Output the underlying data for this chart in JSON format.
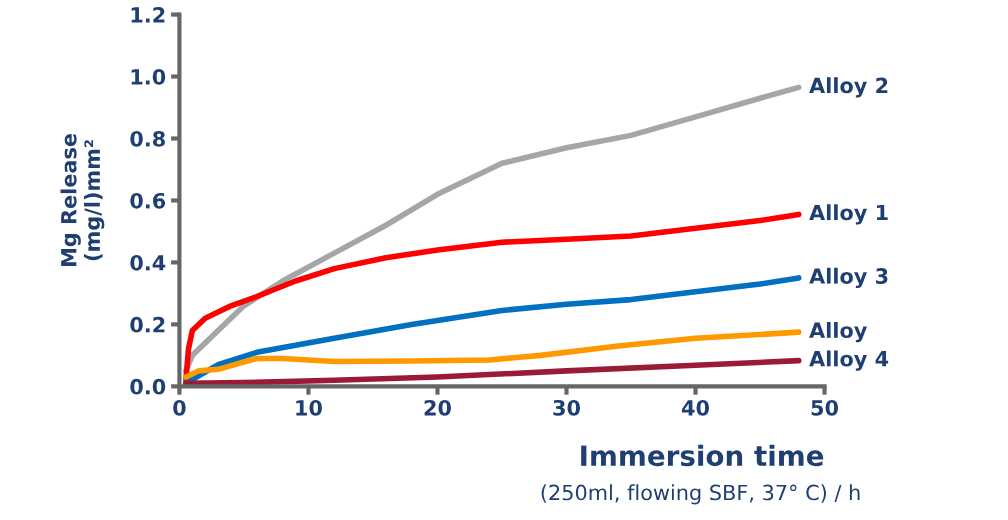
{
  "chart_data": {
    "type": "line",
    "xlabel": "Immersion time",
    "ylabel": "Mg Release\n(mg/l)mm²",
    "annotations": [
      "(250ml, flowing SBF, 37° C) / h"
    ],
    "xlim": [
      0,
      50
    ],
    "xticks": [
      0,
      10,
      20,
      30,
      40,
      50
    ],
    "ylim": [
      0,
      1.2
    ],
    "yticks": [
      {
        "value": 0,
        "label": "0.0"
      },
      {
        "value": 0.2,
        "label": "0.2"
      },
      {
        "value": 0.4,
        "label": "0.4"
      },
      {
        "value": 0.6,
        "label": "0.6"
      },
      {
        "value": 0.8,
        "label": "0.8"
      },
      {
        "value": 1.0,
        "label": "1.0"
      },
      {
        "value": 1.2,
        "label": "1.2"
      }
    ],
    "grid": false,
    "legend": false,
    "marker": "none",
    "line_style": "solid",
    "series": [
      {
        "name": "Alloy 2",
        "color": "#a6a6a6",
        "x": [
          0.5,
          1,
          3,
          5,
          8,
          12,
          16,
          20,
          25,
          30,
          35,
          40,
          45,
          48
        ],
        "values": [
          0.05,
          0.1,
          0.18,
          0.26,
          0.34,
          0.43,
          0.52,
          0.62,
          0.72,
          0.77,
          0.81,
          0.87,
          0.93,
          0.965
        ]
      },
      {
        "name": "Alloy 1",
        "color": "#ff0000",
        "x": [
          0.5,
          0.7,
          1,
          2,
          4,
          6,
          9,
          12,
          16,
          20,
          25,
          30,
          35,
          40,
          45,
          48
        ],
        "values": [
          0.02,
          0.12,
          0.18,
          0.22,
          0.26,
          0.29,
          0.34,
          0.38,
          0.415,
          0.44,
          0.465,
          0.475,
          0.485,
          0.51,
          0.535,
          0.555
        ]
      },
      {
        "name": "Alloy 3",
        "color": "#0070c0",
        "x": [
          0.5,
          3,
          6,
          12,
          18,
          25,
          30,
          35,
          40,
          45,
          48
        ],
        "values": [
          0.01,
          0.07,
          0.11,
          0.155,
          0.2,
          0.245,
          0.265,
          0.28,
          0.305,
          0.33,
          0.35
        ]
      },
      {
        "name": "Alloy",
        "color": "#ff9900",
        "x": [
          0.5,
          1.5,
          3,
          6,
          8,
          12,
          18,
          24,
          28,
          34,
          40,
          48
        ],
        "values": [
          0.03,
          0.05,
          0.055,
          0.09,
          0.09,
          0.08,
          0.082,
          0.085,
          0.1,
          0.13,
          0.155,
          0.175
        ]
      },
      {
        "name": "Alloy 4",
        "color": "#9b1b36",
        "x": [
          0.5,
          5,
          12,
          20,
          30,
          40,
          48
        ],
        "values": [
          0.01,
          0.012,
          0.02,
          0.03,
          0.05,
          0.068,
          0.083
        ]
      }
    ]
  }
}
